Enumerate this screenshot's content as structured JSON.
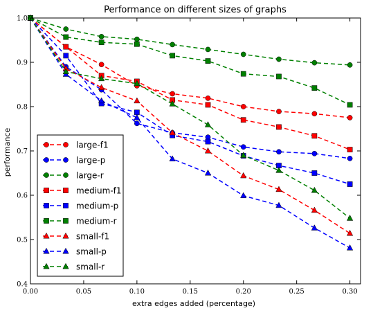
{
  "chart_data": {
    "type": "line",
    "title": "Performance on different sizes of graphs",
    "xlabel": "extra edges added (percentage)",
    "ylabel": "performance",
    "xlim": [
      0.0,
      0.31
    ],
    "ylim": [
      0.4,
      1.0
    ],
    "xticks": [
      "0.00",
      "0.05",
      "0.10",
      "0.15",
      "0.20",
      "0.25",
      "0.30"
    ],
    "yticks": [
      "0.4",
      "0.5",
      "0.6",
      "0.7",
      "0.8",
      "0.9",
      "1.0"
    ],
    "grid": false,
    "legend_position": "lower-left",
    "x": [
      0.0,
      0.0333,
      0.0667,
      0.1,
      0.1333,
      0.1667,
      0.2,
      0.2333,
      0.2667,
      0.3
    ],
    "series": [
      {
        "name": "large-f1",
        "color": "#ff0000",
        "marker": "circle",
        "values": [
          1.0,
          0.935,
          0.895,
          0.847,
          0.829,
          0.819,
          0.8,
          0.789,
          0.784,
          0.775
        ]
      },
      {
        "name": "large-p",
        "color": "#0000ff",
        "marker": "circle",
        "values": [
          1.0,
          0.89,
          0.838,
          0.762,
          0.741,
          0.731,
          0.709,
          0.698,
          0.694,
          0.683
        ]
      },
      {
        "name": "large-r",
        "color": "#008000",
        "marker": "circle",
        "values": [
          1.0,
          0.975,
          0.958,
          0.952,
          0.94,
          0.929,
          0.918,
          0.907,
          0.899,
          0.894
        ]
      },
      {
        "name": "medium-f1",
        "color": "#ff0000",
        "marker": "square",
        "values": [
          1.0,
          0.935,
          0.87,
          0.857,
          0.815,
          0.804,
          0.77,
          0.754,
          0.734,
          0.703
        ]
      },
      {
        "name": "medium-p",
        "color": "#0000ff",
        "marker": "square",
        "values": [
          1.0,
          0.915,
          0.807,
          0.787,
          0.735,
          0.721,
          0.689,
          0.667,
          0.65,
          0.625
        ]
      },
      {
        "name": "medium-r",
        "color": "#008000",
        "marker": "square",
        "values": [
          1.0,
          0.957,
          0.945,
          0.941,
          0.915,
          0.903,
          0.874,
          0.868,
          0.842,
          0.804
        ]
      },
      {
        "name": "small-f1",
        "color": "#ff0000",
        "marker": "triangle",
        "values": [
          1.0,
          0.886,
          0.843,
          0.813,
          0.741,
          0.7,
          0.644,
          0.613,
          0.566,
          0.514
        ]
      },
      {
        "name": "small-p",
        "color": "#0000ff",
        "marker": "triangle",
        "values": [
          1.0,
          0.873,
          0.813,
          0.775,
          0.682,
          0.65,
          0.599,
          0.577,
          0.526,
          0.481
        ]
      },
      {
        "name": "small-r",
        "color": "#008000",
        "marker": "triangle",
        "values": [
          1.0,
          0.879,
          0.863,
          0.852,
          0.806,
          0.759,
          0.69,
          0.656,
          0.611,
          0.548
        ]
      }
    ]
  }
}
